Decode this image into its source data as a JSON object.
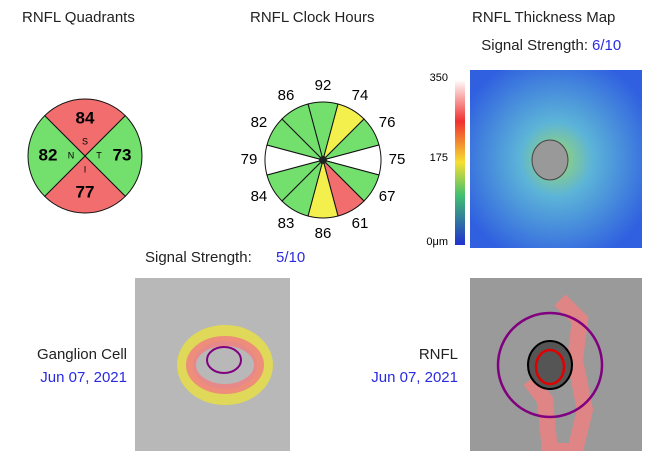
{
  "quadrants": {
    "title": "RNFL Quadrants",
    "sectors": [
      {
        "letter": "S",
        "value": 84,
        "color": "#f26d6d"
      },
      {
        "letter": "T",
        "value": 73,
        "color": "#73e06e"
      },
      {
        "letter": "I",
        "value": 77,
        "color": "#f26d6d"
      },
      {
        "letter": "N",
        "value": 82,
        "color": "#73e06e"
      }
    ]
  },
  "clock_hours": {
    "title": "RNFL Clock Hours",
    "values": [
      92,
      74,
      76,
      75,
      67,
      61,
      86,
      83,
      84,
      79,
      82,
      86
    ],
    "colors": [
      "#73e06e",
      "#f3f04e",
      "#73e06e",
      "#ffffff",
      "#73e06e",
      "#f26d6d",
      "#f3f04e",
      "#73e06e",
      "#73e06e",
      "#ffffff",
      "#73e06e",
      "#73e06e"
    ]
  },
  "thickness_map": {
    "title": "RNFL Thickness Map",
    "signal_label": "Signal Strength:",
    "signal_value": "6/10",
    "scale_labels": [
      "350",
      "175",
      "0μm"
    ]
  },
  "ganglion_cell": {
    "signal_label": "Signal Strength:",
    "signal_value": "5/10",
    "label": "Ganglion Cell",
    "date": "Jun 07, 2021"
  },
  "rnfl": {
    "label": "RNFL",
    "date": "Jun 07, 2021"
  }
}
